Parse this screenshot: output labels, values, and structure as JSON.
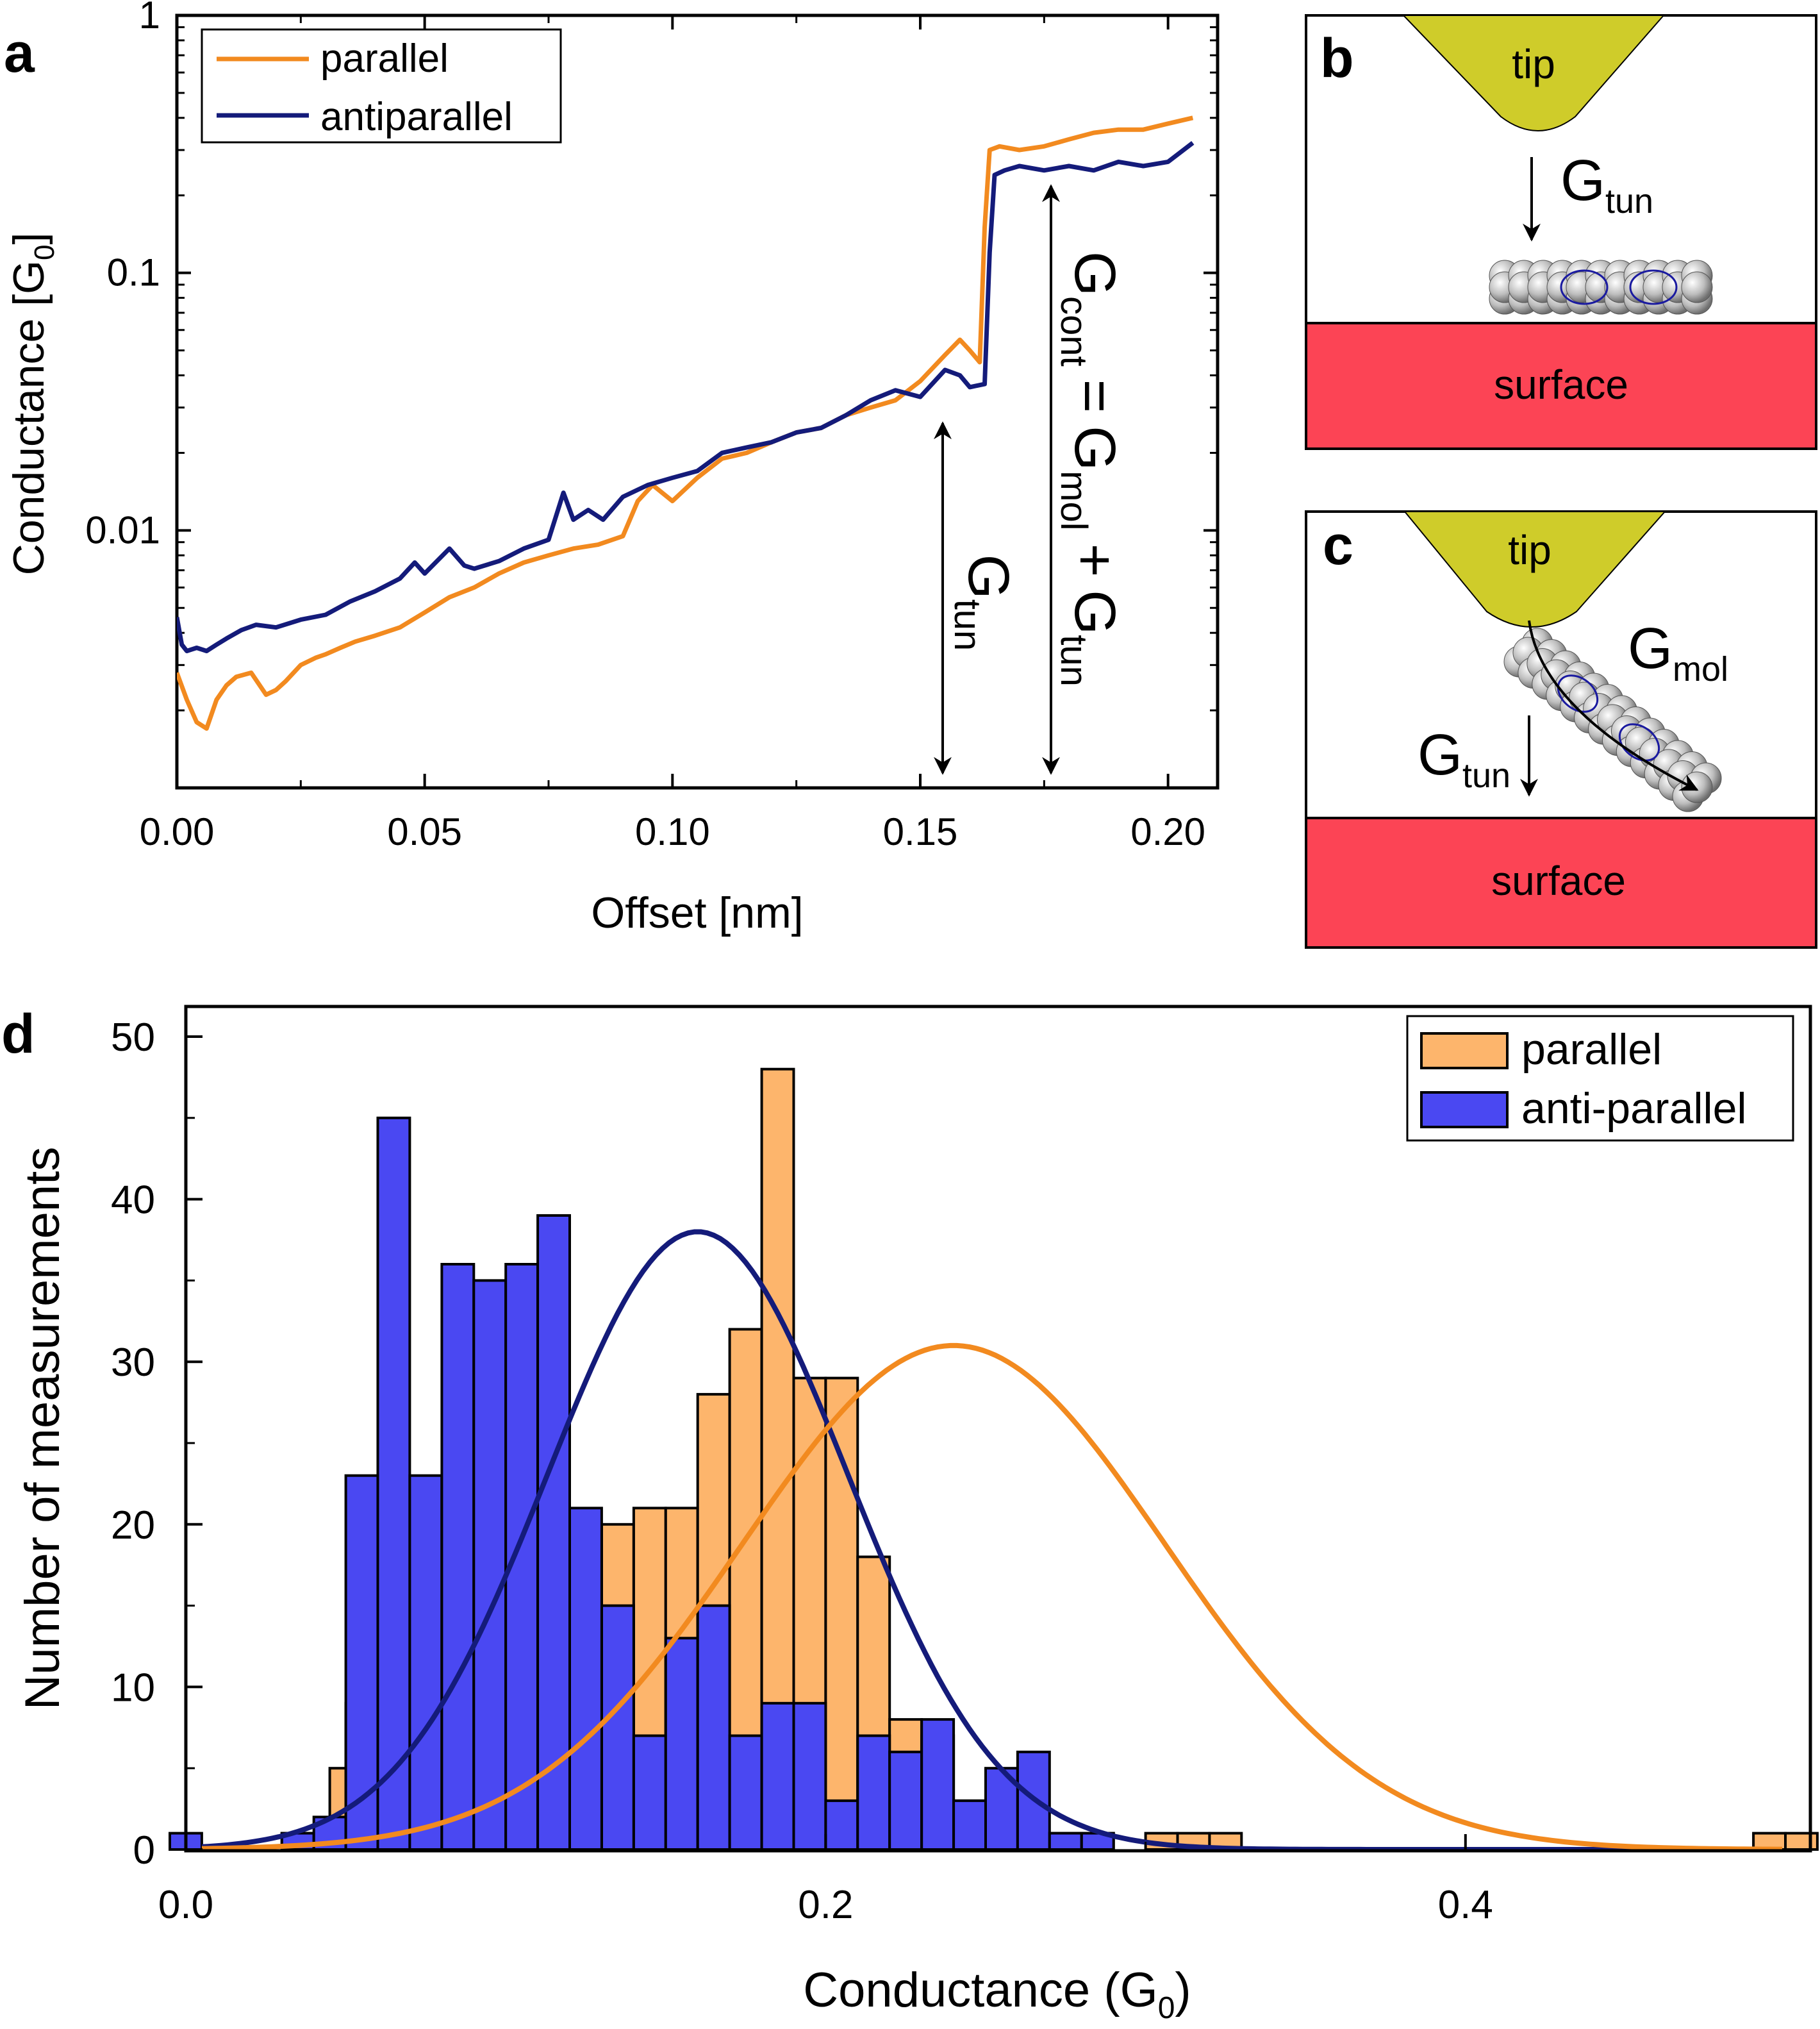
{
  "panel_letters": {
    "a": "a",
    "b": "b",
    "c": "c",
    "d": "d"
  },
  "colors": {
    "parallel_line": "#f28a1f",
    "antiparallel_line": "#141b7a",
    "parallel_bar": "#fdb56c",
    "antiparallel_bar": "#4a48f2",
    "tip": "#cfcc2a",
    "surface": "#fc4455",
    "molecule": "#c0c0c0"
  },
  "chart_data": [
    {
      "type": "line",
      "panel": "a",
      "xlabel": "Offset [nm]",
      "ylabel_main": "Conductance [G",
      "ylabel_sub": "0",
      "ylabel_end": "]",
      "yscale": "log",
      "xlim": [
        0.0,
        0.21
      ],
      "ylim": [
        0.001,
        1
      ],
      "xticks": [
        0.0,
        0.05,
        0.1,
        0.15,
        0.2
      ],
      "xticklabels": [
        "0.00",
        "0.05",
        "0.10",
        "0.15",
        "0.20"
      ],
      "yticks": [
        0.01,
        0.1,
        1
      ],
      "yticklabels": [
        "0.01",
        "0.1",
        "1"
      ],
      "legend": [
        {
          "key": "parallel",
          "label": "parallel"
        },
        {
          "key": "antiparallel",
          "label": "antiparallel"
        }
      ],
      "series": [
        {
          "key": "parallel",
          "name": "parallel",
          "x": [
            0.0,
            0.002,
            0.004,
            0.006,
            0.008,
            0.01,
            0.012,
            0.015,
            0.018,
            0.02,
            0.022,
            0.025,
            0.028,
            0.03,
            0.033,
            0.036,
            0.04,
            0.045,
            0.05,
            0.055,
            0.06,
            0.065,
            0.07,
            0.075,
            0.08,
            0.085,
            0.09,
            0.093,
            0.096,
            0.1,
            0.105,
            0.11,
            0.115,
            0.12,
            0.125,
            0.13,
            0.135,
            0.14,
            0.145,
            0.15,
            0.155,
            0.158,
            0.16,
            0.162,
            0.163,
            0.164,
            0.166,
            0.17,
            0.175,
            0.18,
            0.185,
            0.19,
            0.195,
            0.2,
            0.205
          ],
          "y": [
            0.0028,
            0.0022,
            0.0018,
            0.0017,
            0.0022,
            0.0025,
            0.0027,
            0.0028,
            0.0023,
            0.0024,
            0.0026,
            0.003,
            0.0032,
            0.0033,
            0.0035,
            0.0037,
            0.0039,
            0.0042,
            0.0048,
            0.0055,
            0.006,
            0.0068,
            0.0075,
            0.008,
            0.0085,
            0.0088,
            0.0095,
            0.013,
            0.015,
            0.013,
            0.016,
            0.019,
            0.02,
            0.022,
            0.024,
            0.025,
            0.028,
            0.03,
            0.032,
            0.038,
            0.048,
            0.055,
            0.05,
            0.045,
            0.15,
            0.3,
            0.31,
            0.3,
            0.31,
            0.33,
            0.35,
            0.36,
            0.36,
            0.38,
            0.4
          ]
        },
        {
          "key": "antiparallel",
          "name": "antiparallel",
          "x": [
            0.0,
            0.001,
            0.002,
            0.004,
            0.006,
            0.008,
            0.01,
            0.013,
            0.016,
            0.02,
            0.025,
            0.03,
            0.035,
            0.04,
            0.045,
            0.048,
            0.05,
            0.055,
            0.058,
            0.06,
            0.065,
            0.07,
            0.075,
            0.078,
            0.08,
            0.083,
            0.086,
            0.09,
            0.095,
            0.1,
            0.105,
            0.11,
            0.115,
            0.12,
            0.125,
            0.13,
            0.135,
            0.14,
            0.145,
            0.15,
            0.155,
            0.158,
            0.16,
            0.163,
            0.164,
            0.165,
            0.167,
            0.17,
            0.175,
            0.18,
            0.185,
            0.19,
            0.195,
            0.2,
            0.205
          ],
          "y": [
            0.0046,
            0.0036,
            0.0034,
            0.0035,
            0.0034,
            0.0036,
            0.0038,
            0.0041,
            0.0043,
            0.0042,
            0.0045,
            0.0047,
            0.0053,
            0.0058,
            0.0065,
            0.0075,
            0.0068,
            0.0085,
            0.0073,
            0.0071,
            0.0076,
            0.0085,
            0.0092,
            0.014,
            0.011,
            0.012,
            0.011,
            0.0135,
            0.015,
            0.016,
            0.017,
            0.02,
            0.021,
            0.022,
            0.024,
            0.025,
            0.028,
            0.032,
            0.035,
            0.033,
            0.042,
            0.04,
            0.036,
            0.037,
            0.12,
            0.24,
            0.25,
            0.26,
            0.25,
            0.26,
            0.25,
            0.27,
            0.26,
            0.27,
            0.32
          ]
        }
      ],
      "annotations": {
        "gtun_main": "G",
        "gtun_sub": "tun",
        "gcont_main": "G",
        "gcont_sub": "cont",
        "eq": "=",
        "gmol_main": "G",
        "gmol_sub": "mol",
        "plus": "+",
        "gtun2_main": "G",
        "gtun2_sub": "tun"
      }
    },
    {
      "type": "bar",
      "panel": "d",
      "xlabel_main": "Conductance (G",
      "xlabel_sub": "0",
      "xlabel_end": ")",
      "ylabel": "Number of measurements",
      "xlim": [
        0.0,
        0.5
      ],
      "ylim": [
        0,
        50
      ],
      "xticks": [
        0.0,
        0.2,
        0.4
      ],
      "xticklabels": [
        "0.0",
        "0.2",
        "0.4"
      ],
      "yticks": [
        0,
        10,
        20,
        30,
        40,
        50
      ],
      "yticklabels": [
        "0",
        "10",
        "20",
        "30",
        "40",
        "50"
      ],
      "bin_width": 0.01,
      "legend": [
        {
          "key": "parallel",
          "label": "parallel"
        },
        {
          "key": "anti_parallel",
          "label": "anti-parallel"
        }
      ],
      "series": [
        {
          "key": "parallel",
          "name": "parallel",
          "offset": 0.005,
          "values": [
            0,
            0,
            0,
            0,
            0,
            1,
            0,
            0,
            5,
            9,
            0,
            10,
            0,
            8,
            0,
            10,
            0,
            13,
            0,
            27,
            0,
            25,
            0,
            18,
            0,
            20,
            0,
            21,
            0,
            21,
            0,
            28,
            0,
            32,
            0,
            48,
            0,
            29,
            0,
            29,
            0,
            18,
            0,
            8,
            0,
            7,
            0,
            3,
            0,
            2,
            0,
            1,
            0,
            1,
            0,
            1,
            0,
            0,
            0,
            1,
            0,
            1,
            0,
            1,
            0,
            0,
            0,
            0,
            0,
            0,
            0,
            0,
            0,
            0,
            0,
            0,
            0,
            0,
            0,
            0,
            0,
            0,
            0,
            0,
            0,
            0,
            0,
            0,
            0,
            0,
            0,
            0,
            0,
            0,
            0,
            0,
            0,
            1,
            0,
            1
          ]
        },
        {
          "key": "anti_parallel",
          "name": "anti-parallel",
          "offset": -0.005,
          "values": [
            1,
            0,
            0,
            0,
            0,
            0,
            0,
            1,
            0,
            2,
            0,
            23,
            0,
            45,
            0,
            23,
            0,
            36,
            0,
            35,
            0,
            36,
            0,
            39,
            0,
            21,
            0,
            15,
            0,
            7,
            0,
            13,
            0,
            15,
            0,
            7,
            0,
            9,
            0,
            9,
            0,
            3,
            0,
            7,
            0,
            6,
            0,
            8,
            0,
            3,
            0,
            5,
            0,
            6,
            0,
            1,
            0,
            1,
            0,
            0,
            0,
            0,
            0,
            0,
            0,
            0,
            0,
            0,
            0,
            0,
            0,
            0,
            0,
            0,
            0,
            0,
            0,
            0,
            0,
            0,
            0,
            0,
            0,
            0,
            0,
            0,
            0,
            0,
            0,
            0,
            0,
            0,
            0,
            0,
            0,
            0,
            0,
            0,
            0,
            0
          ]
        }
      ],
      "fits": [
        {
          "key": "parallel_fit",
          "name": "parallel fit",
          "mean": 0.24,
          "sigma": 0.066,
          "amplitude": 31
        },
        {
          "key": "anti_parallel_fit",
          "name": "anti-parallel fit",
          "mean": 0.16,
          "sigma": 0.047,
          "amplitude": 38
        }
      ]
    }
  ],
  "schematic_b": {
    "tip": "tip",
    "surface": "surface",
    "gtun_main": "G",
    "gtun_sub": "tun"
  },
  "schematic_c": {
    "tip": "tip",
    "surface": "surface",
    "gmol_main": "G",
    "gmol_sub": "mol",
    "gtun_main": "G",
    "gtun_sub": "tun"
  }
}
